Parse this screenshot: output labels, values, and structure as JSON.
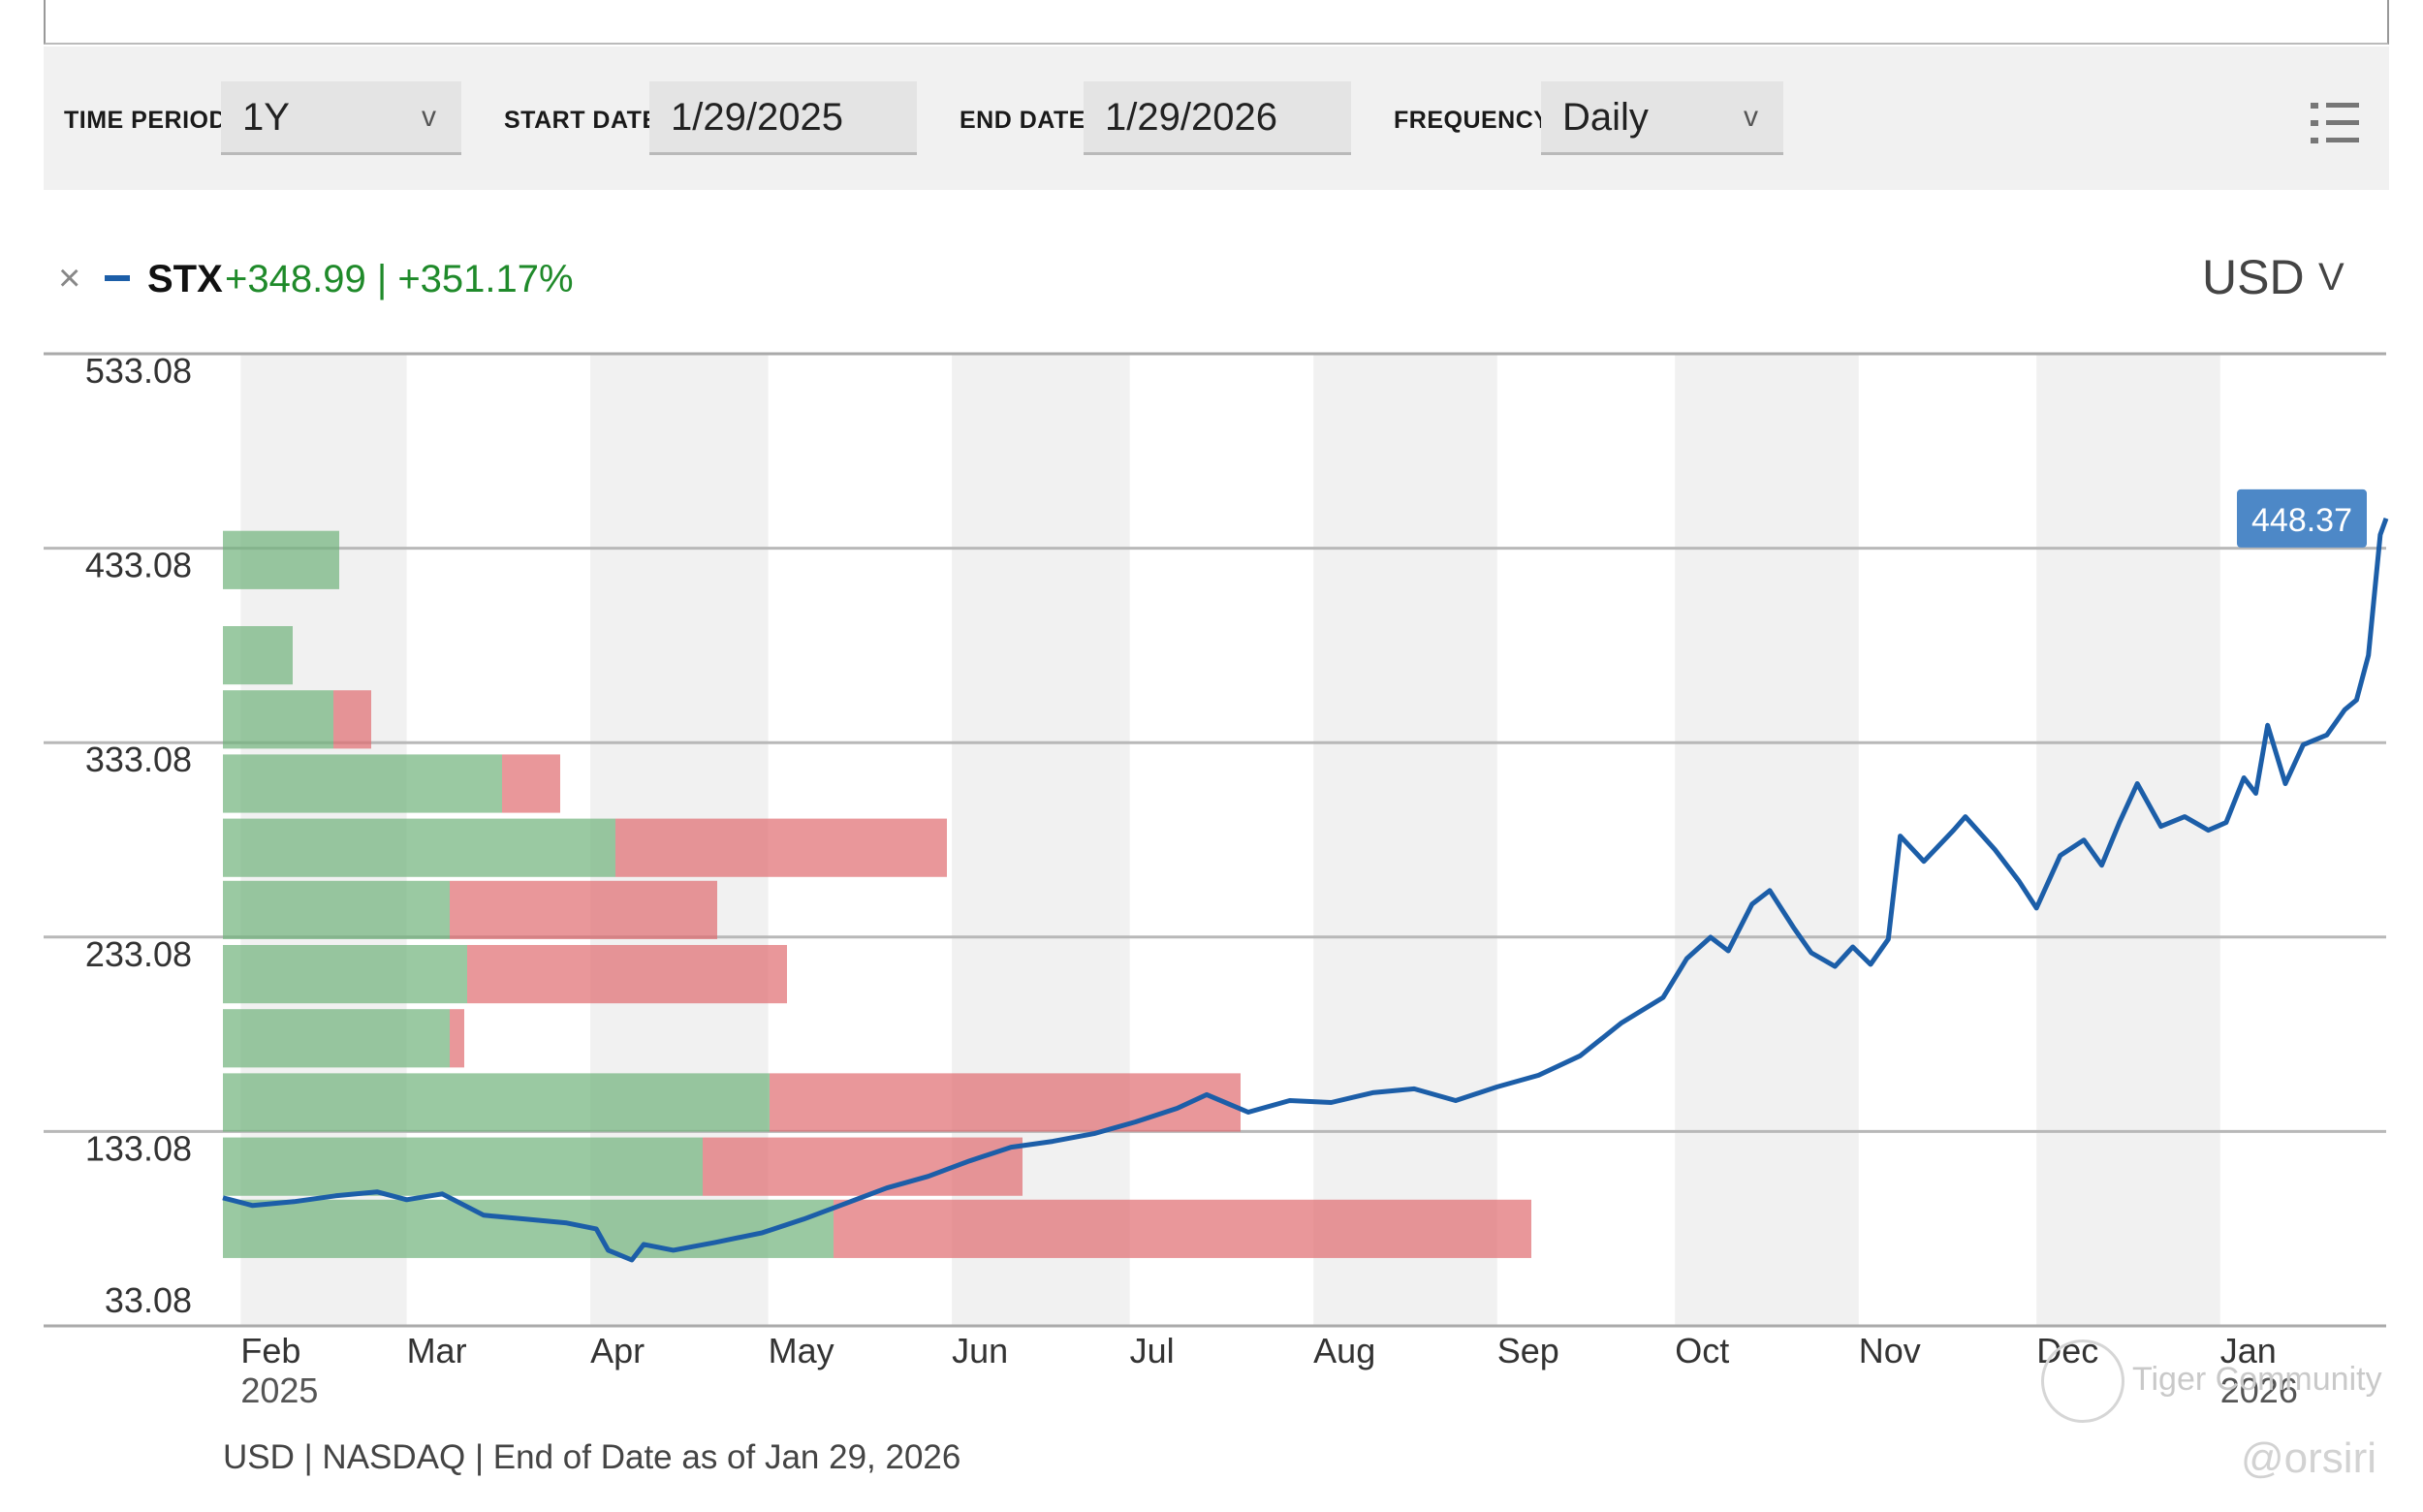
{
  "toolbar": {
    "time_period_label": "TIME PERIOD",
    "time_period_value": "1Y",
    "start_date_label": "START DATE",
    "start_date_value": "1/29/2025",
    "end_date_label": "END DATE",
    "end_date_value": "1/29/2026",
    "frequency_label": "FREQUENCY",
    "frequency_value": "Daily",
    "chevron": "v"
  },
  "legend": {
    "close": "×",
    "ticker": "STX",
    "change": "+348.99 | +351.17%",
    "series_color": "#1c5ea8",
    "currency": "USD",
    "currency_chevron": "V"
  },
  "chart_data": {
    "type": "line",
    "y_ticks": [
      "533.08",
      "433.08",
      "333.08",
      "233.08",
      "133.08",
      "33.08"
    ],
    "y_tick_values": [
      533.08,
      433.08,
      333.08,
      233.08,
      133.08,
      33.08
    ],
    "ylim": [
      33.08,
      533.08
    ],
    "x_ticks": [
      {
        "label": "Feb",
        "sub": "2025",
        "x": "2025-02-01"
      },
      {
        "label": "Mar",
        "sub": "",
        "x": "2025-03-01"
      },
      {
        "label": "Apr",
        "sub": "",
        "x": "2025-04-01"
      },
      {
        "label": "May",
        "sub": "",
        "x": "2025-05-01"
      },
      {
        "label": "Jun",
        "sub": "",
        "x": "2025-06-01"
      },
      {
        "label": "Jul",
        "sub": "",
        "x": "2025-07-01"
      },
      {
        "label": "Aug",
        "sub": "",
        "x": "2025-08-01"
      },
      {
        "label": "Sep",
        "sub": "",
        "x": "2025-09-01"
      },
      {
        "label": "Oct",
        "sub": "",
        "x": "2025-10-01"
      },
      {
        "label": "Nov",
        "sub": "",
        "x": "2025-11-01"
      },
      {
        "label": "Dec",
        "sub": "",
        "x": "2025-12-01"
      },
      {
        "label": "Jan",
        "sub": "2026",
        "x": "2026-01-01"
      }
    ],
    "xlim": [
      "2025-01-29",
      "2026-01-29"
    ],
    "last_value_label": "448.37",
    "last_value": 448.37,
    "series": [
      {
        "color": "#1c5ea8",
        "points": [
          [
            "2025-01-29",
            99
          ],
          [
            "2025-02-03",
            95
          ],
          [
            "2025-02-10",
            97
          ],
          [
            "2025-02-17",
            100
          ],
          [
            "2025-02-24",
            102
          ],
          [
            "2025-03-01",
            98
          ],
          [
            "2025-03-07",
            101
          ],
          [
            "2025-03-14",
            90
          ],
          [
            "2025-03-21",
            88
          ],
          [
            "2025-03-28",
            86
          ],
          [
            "2025-04-02",
            83
          ],
          [
            "2025-04-04",
            72
          ],
          [
            "2025-04-08",
            67
          ],
          [
            "2025-04-10",
            75
          ],
          [
            "2025-04-15",
            72
          ],
          [
            "2025-04-22",
            76
          ],
          [
            "2025-04-30",
            81
          ],
          [
            "2025-05-07",
            88
          ],
          [
            "2025-05-14",
            96
          ],
          [
            "2025-05-21",
            104
          ],
          [
            "2025-05-28",
            110
          ],
          [
            "2025-06-04",
            118
          ],
          [
            "2025-06-11",
            125
          ],
          [
            "2025-06-18",
            128
          ],
          [
            "2025-06-25",
            132
          ],
          [
            "2025-07-02",
            138
          ],
          [
            "2025-07-09",
            145
          ],
          [
            "2025-07-14",
            152
          ],
          [
            "2025-07-21",
            143
          ],
          [
            "2025-07-28",
            149
          ],
          [
            "2025-08-04",
            148
          ],
          [
            "2025-08-11",
            153
          ],
          [
            "2025-08-18",
            155
          ],
          [
            "2025-08-25",
            149
          ],
          [
            "2025-09-01",
            156
          ],
          [
            "2025-09-08",
            162
          ],
          [
            "2025-09-15",
            172
          ],
          [
            "2025-09-22",
            189
          ],
          [
            "2025-09-29",
            202
          ],
          [
            "2025-10-03",
            222
          ],
          [
            "2025-10-07",
            233
          ],
          [
            "2025-10-10",
            226
          ],
          [
            "2025-10-14",
            250
          ],
          [
            "2025-10-17",
            257
          ],
          [
            "2025-10-21",
            238
          ],
          [
            "2025-10-24",
            225
          ],
          [
            "2025-10-28",
            218
          ],
          [
            "2025-10-31",
            228
          ],
          [
            "2025-11-03",
            219
          ],
          [
            "2025-11-06",
            232
          ],
          [
            "2025-11-08",
            285
          ],
          [
            "2025-11-12",
            272
          ],
          [
            "2025-11-17",
            288
          ],
          [
            "2025-11-19",
            295
          ],
          [
            "2025-11-24",
            278
          ],
          [
            "2025-11-28",
            262
          ],
          [
            "2025-12-01",
            248
          ],
          [
            "2025-12-05",
            275
          ],
          [
            "2025-12-09",
            283
          ],
          [
            "2025-12-12",
            270
          ],
          [
            "2025-12-15",
            292
          ],
          [
            "2025-12-18",
            312
          ],
          [
            "2025-12-22",
            290
          ],
          [
            "2025-12-26",
            295
          ],
          [
            "2025-12-30",
            288
          ],
          [
            "2026-01-02",
            292
          ],
          [
            "2026-01-05",
            315
          ],
          [
            "2026-01-07",
            307
          ],
          [
            "2026-01-09",
            342
          ],
          [
            "2026-01-12",
            312
          ],
          [
            "2026-01-15",
            332
          ],
          [
            "2026-01-19",
            337
          ],
          [
            "2026-01-22",
            350
          ],
          [
            "2026-01-24",
            355
          ],
          [
            "2026-01-26",
            378
          ],
          [
            "2026-01-28",
            440
          ],
          [
            "2026-01-29",
            448.37
          ]
        ]
      }
    ],
    "volume_profile": [
      {
        "low": 68,
        "high": 98,
        "up": 210,
        "down": 240
      },
      {
        "low": 100,
        "high": 130,
        "up": 165,
        "down": 110
      },
      {
        "low": 133,
        "high": 163,
        "up": 188,
        "down": 162
      },
      {
        "low": 166,
        "high": 196,
        "up": 78,
        "down": 5
      },
      {
        "low": 199,
        "high": 229,
        "up": 84,
        "down": 110
      },
      {
        "low": 232,
        "high": 262,
        "up": 78,
        "down": 92
      },
      {
        "low": 264,
        "high": 294,
        "up": 135,
        "down": 114
      },
      {
        "low": 297,
        "high": 327,
        "up": 96,
        "down": 20
      },
      {
        "low": 330,
        "high": 360,
        "up": 38,
        "down": 13
      },
      {
        "low": 363,
        "high": 393,
        "up": 24,
        "down": 0
      },
      {
        "low": 412,
        "high": 442,
        "up": 40,
        "down": 0
      }
    ],
    "volume_up_color": "#6fb27a",
    "volume_down_color": "#e06b6f",
    "grid": true
  },
  "footer": "USD | NASDAQ | End of Date as of Jan 29, 2026",
  "watermark": {
    "brand": "Tiger Community",
    "handle": "@orsiri"
  }
}
